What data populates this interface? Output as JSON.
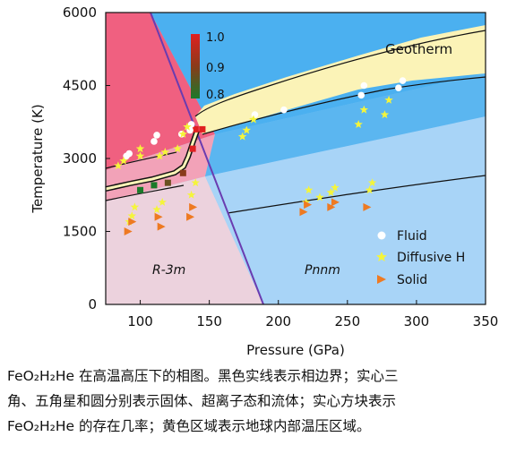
{
  "chart_data": {
    "type": "scatter",
    "xlabel": "Pressure (GPa)",
    "ylabel": "Temperature (K)",
    "xlim": [
      75,
      350
    ],
    "ylim": [
      0,
      6000
    ],
    "xticks": [
      100,
      150,
      200,
      250,
      300,
      350
    ],
    "yticks": [
      0,
      1500,
      3000,
      4500,
      6000
    ],
    "region_labels": {
      "left": "R-3m",
      "right": "Pnnm",
      "geotherm": "Geotherm"
    },
    "colorbar": {
      "ticks": [
        "1.0",
        "0.9",
        "0.8"
      ],
      "colors": [
        "#e02020",
        "#8a3a1a",
        "#1a7a2a"
      ]
    },
    "legend_position": "lower-right",
    "legend": [
      {
        "label": "Fluid",
        "marker": "circle",
        "color": "#ffffff"
      },
      {
        "label": "Diffusive H",
        "marker": "star",
        "color": "#f5f53a"
      },
      {
        "label": "Solid",
        "marker": "triangle-right",
        "color": "#ee7a22"
      }
    ],
    "series": [
      {
        "name": "Fluid",
        "points": [
          [
            90,
            3050
          ],
          [
            92,
            3100
          ],
          [
            110,
            3350
          ],
          [
            112,
            3480
          ],
          [
            130,
            3500
          ],
          [
            136,
            3580
          ],
          [
            137,
            3700
          ],
          [
            183,
            3900
          ],
          [
            204,
            4000
          ],
          [
            260,
            4300
          ],
          [
            262,
            4500
          ],
          [
            287,
            4450
          ],
          [
            290,
            4600
          ]
        ]
      },
      {
        "name": "Diffusive H",
        "points": [
          [
            84,
            2850
          ],
          [
            88,
            2950
          ],
          [
            100,
            3050
          ],
          [
            100,
            3200
          ],
          [
            114,
            3050
          ],
          [
            118,
            3130
          ],
          [
            127,
            3200
          ],
          [
            131,
            3500
          ],
          [
            134,
            3650
          ],
          [
            137,
            2250
          ],
          [
            140,
            2500
          ],
          [
            92,
            1700
          ],
          [
            94,
            1820
          ],
          [
            96,
            2000
          ],
          [
            112,
            1950
          ],
          [
            116,
            2100
          ],
          [
            174,
            3450
          ],
          [
            177,
            3580
          ],
          [
            182,
            3800
          ],
          [
            220,
            2100
          ],
          [
            222,
            2350
          ],
          [
            230,
            2200
          ],
          [
            238,
            2300
          ],
          [
            241,
            2400
          ],
          [
            258,
            3700
          ],
          [
            262,
            4000
          ],
          [
            266,
            2350
          ],
          [
            268,
            2500
          ],
          [
            277,
            3900
          ],
          [
            280,
            4200
          ]
        ]
      },
      {
        "name": "Solid",
        "points": [
          [
            91,
            1500
          ],
          [
            94,
            1700
          ],
          [
            113,
            1800
          ],
          [
            115,
            1600
          ],
          [
            136,
            1800
          ],
          [
            138,
            2000
          ],
          [
            218,
            1900
          ],
          [
            221,
            2050
          ],
          [
            238,
            2000
          ],
          [
            241,
            2100
          ],
          [
            264,
            2000
          ]
        ]
      }
    ],
    "probability_markers": [
      [
        100,
        2350,
        "0.8"
      ],
      [
        120,
        2500,
        "0.85"
      ],
      [
        131,
        2700,
        "0.9"
      ],
      [
        138,
        3200,
        "1.0"
      ],
      [
        140,
        3600,
        "1.0"
      ],
      [
        145,
        3600,
        "1.0"
      ],
      [
        110,
        2450,
        "0.8"
      ]
    ]
  },
  "caption": {
    "line1": "FeO₂H₂He 在高温高压下的相图。黑色实线表示相边界；实心三",
    "line2": "角、五角星和圆分别表示固体、超离子态和流体；实心方块表示",
    "line3": "FeO₂H₂He 的存在几率；黄色区域表示地球内部温压区域。"
  }
}
